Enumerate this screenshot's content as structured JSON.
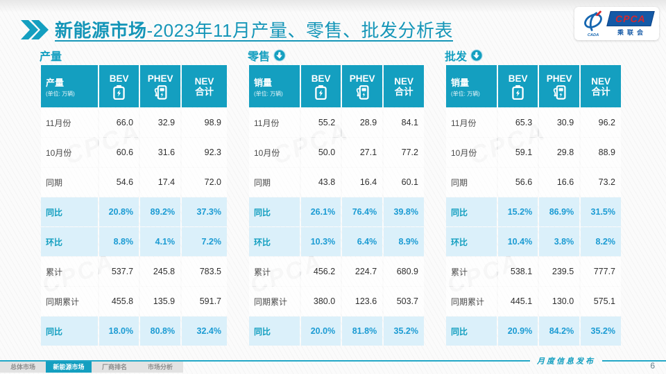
{
  "title": {
    "bold": "新能源市场",
    "rest": "-2023年11月产量、零售、批发分析表"
  },
  "logo": {
    "name": "CPCA",
    "subtitle": "乘联会",
    "emblem": "CADA"
  },
  "watermark": "CPCA",
  "colors": {
    "accent": "#149FC0",
    "highlight_bg": "#D8EFFA",
    "percent_text": "#1B9BD3",
    "logo_blue": "#1459A6",
    "logo_red": "#D8262C"
  },
  "tables": [
    {
      "section": "产量",
      "corner": "产量",
      "unit": "(单位: 万辆)",
      "col_bev": "BEV",
      "col_phev": "PHEV",
      "col_nev1": "NEV",
      "col_nev2": "合计",
      "rows": [
        {
          "label": "11月份",
          "v1": "66.0",
          "v2": "32.9",
          "v3": "98.9",
          "hl": false
        },
        {
          "label": "10月份",
          "v1": "60.6",
          "v2": "31.6",
          "v3": "92.3",
          "hl": false
        },
        {
          "label": "同期",
          "v1": "54.6",
          "v2": "17.4",
          "v3": "72.0",
          "hl": false
        },
        {
          "label": "同比",
          "v1": "20.8%",
          "v2": "89.2%",
          "v3": "37.3%",
          "hl": true
        },
        {
          "label": "环比",
          "v1": "8.8%",
          "v2": "4.1%",
          "v3": "7.2%",
          "hl": true
        },
        {
          "label": "累计",
          "v1": "537.7",
          "v2": "245.8",
          "v3": "783.5",
          "hl": false
        },
        {
          "label": "同期累计",
          "v1": "455.8",
          "v2": "135.9",
          "v3": "591.7",
          "hl": false
        },
        {
          "label": "同比",
          "v1": "18.0%",
          "v2": "80.8%",
          "v3": "32.4%",
          "hl": true
        }
      ]
    },
    {
      "section": "零售",
      "corner": "销量",
      "unit": "(单位: 万辆)",
      "col_bev": "BEV",
      "col_phev": "PHEV",
      "col_nev1": "NEV",
      "col_nev2": "合计",
      "rows": [
        {
          "label": "11月份",
          "v1": "55.2",
          "v2": "28.9",
          "v3": "84.1",
          "hl": false
        },
        {
          "label": "10月份",
          "v1": "50.0",
          "v2": "27.1",
          "v3": "77.2",
          "hl": false
        },
        {
          "label": "同期",
          "v1": "43.8",
          "v2": "16.4",
          "v3": "60.1",
          "hl": false
        },
        {
          "label": "同比",
          "v1": "26.1%",
          "v2": "76.4%",
          "v3": "39.8%",
          "hl": true
        },
        {
          "label": "环比",
          "v1": "10.3%",
          "v2": "6.4%",
          "v3": "8.9%",
          "hl": true
        },
        {
          "label": "累计",
          "v1": "456.2",
          "v2": "224.7",
          "v3": "680.9",
          "hl": false
        },
        {
          "label": "同期累计",
          "v1": "380.0",
          "v2": "123.6",
          "v3": "503.7",
          "hl": false
        },
        {
          "label": "同比",
          "v1": "20.0%",
          "v2": "81.8%",
          "v3": "35.2%",
          "hl": true
        }
      ]
    },
    {
      "section": "批发",
      "corner": "销量",
      "unit": "(单位: 万辆)",
      "col_bev": "BEV",
      "col_phev": "PHEV",
      "col_nev1": "NEV",
      "col_nev2": "合计",
      "rows": [
        {
          "label": "11月份",
          "v1": "65.3",
          "v2": "30.9",
          "v3": "96.2",
          "hl": false
        },
        {
          "label": "10月份",
          "v1": "59.1",
          "v2": "29.8",
          "v3": "88.9",
          "hl": false
        },
        {
          "label": "同期",
          "v1": "56.6",
          "v2": "16.6",
          "v3": "73.2",
          "hl": false
        },
        {
          "label": "同比",
          "v1": "15.2%",
          "v2": "86.9%",
          "v3": "31.5%",
          "hl": true
        },
        {
          "label": "环比",
          "v1": "10.4%",
          "v2": "3.8%",
          "v3": "8.2%",
          "hl": true
        },
        {
          "label": "累计",
          "v1": "538.1",
          "v2": "239.5",
          "v3": "777.7",
          "hl": false
        },
        {
          "label": "同期累计",
          "v1": "445.1",
          "v2": "130.0",
          "v3": "575.1",
          "hl": false
        },
        {
          "label": "同比",
          "v1": "20.9%",
          "v2": "84.2%",
          "v3": "35.2%",
          "hl": true
        }
      ]
    }
  ],
  "footer": {
    "caption": "月度信息发布",
    "page": "6",
    "tabs": [
      {
        "label": "总体市场",
        "active": false
      },
      {
        "label": "新能源市场",
        "active": true
      },
      {
        "label": "厂商排名",
        "active": false
      },
      {
        "label": "市场分析",
        "active": false
      }
    ]
  }
}
